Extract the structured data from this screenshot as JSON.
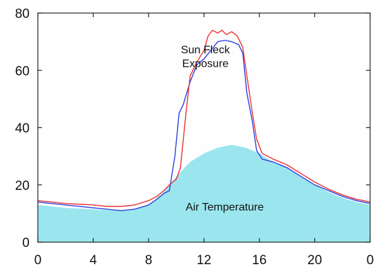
{
  "chart_data": {
    "type": "line",
    "title": "",
    "xlabel": "",
    "ylabel": "",
    "xlim": [
      0,
      24
    ],
    "ylim": [
      0,
      80
    ],
    "x_ticks": [
      "0",
      "4",
      "8",
      "12",
      "16",
      "20",
      "0"
    ],
    "y_ticks": [
      "0",
      "20",
      "40",
      "60",
      "80"
    ],
    "x_tick_values": [
      0,
      4,
      8,
      12,
      16,
      20,
      24
    ],
    "y_tick_values": [
      0,
      20,
      40,
      60,
      80
    ],
    "grid": false,
    "legend": "none",
    "annotations": [
      {
        "text_lines": [
          "Sun Fleck",
          "Exposure"
        ],
        "x": 12.1,
        "y": 66
      },
      {
        "text_lines": [
          "Air Temperature"
        ],
        "x": 13.5,
        "y": 11
      }
    ],
    "series": [
      {
        "kind": "area",
        "color": "#9be6ee",
        "x": [
          0,
          2,
          4,
          6,
          7,
          8,
          9,
          10,
          11,
          12,
          13,
          14,
          15,
          16,
          17,
          18,
          19,
          20,
          21,
          22,
          23,
          24
        ],
        "y": [
          13,
          12,
          11.5,
          11,
          11.5,
          13,
          17,
          23,
          28,
          31,
          33,
          34,
          33,
          31,
          28,
          26,
          23,
          20,
          17.5,
          15.5,
          14,
          13
        ]
      },
      {
        "kind": "line",
        "color": "#2a3fe0",
        "x": [
          0,
          2,
          4,
          5,
          6,
          7,
          8,
          8.6,
          9.1,
          9.5,
          9.9,
          10.2,
          10.5,
          11,
          11.5,
          12,
          12.5,
          13,
          13.5,
          14,
          14.5,
          14.8,
          15.1,
          15.5,
          15.8,
          16.2,
          17,
          18,
          19,
          20,
          21,
          22,
          23,
          24
        ],
        "y": [
          14,
          13,
          12,
          11.5,
          11,
          11.5,
          13,
          15,
          17,
          18,
          30,
          45,
          48,
          56,
          62,
          64,
          67,
          70,
          70.5,
          70,
          69,
          66,
          52,
          42,
          32,
          29,
          28,
          26,
          23,
          20,
          18,
          16,
          14.5,
          13.5
        ]
      },
      {
        "kind": "line",
        "color": "#ee3030",
        "x": [
          0,
          2,
          4,
          5,
          6,
          7,
          8,
          8.6,
          9.1,
          9.5,
          10,
          10.3,
          10.7,
          11,
          11.5,
          12,
          12.3,
          12.6,
          13,
          13.3,
          13.6,
          14,
          14.4,
          14.8,
          15.1,
          15.5,
          15.8,
          16.2,
          17,
          18,
          19,
          20,
          21,
          22,
          23,
          24
        ],
        "y": [
          14.5,
          13.5,
          13,
          12.5,
          12.5,
          13,
          14.5,
          16,
          18,
          20,
          22,
          26,
          45,
          58,
          63,
          67,
          72,
          74,
          73,
          74,
          72.5,
          73.5,
          72,
          68,
          58,
          45,
          36,
          31,
          29,
          27,
          24,
          21,
          18.5,
          16.5,
          15,
          14
        ]
      }
    ]
  }
}
